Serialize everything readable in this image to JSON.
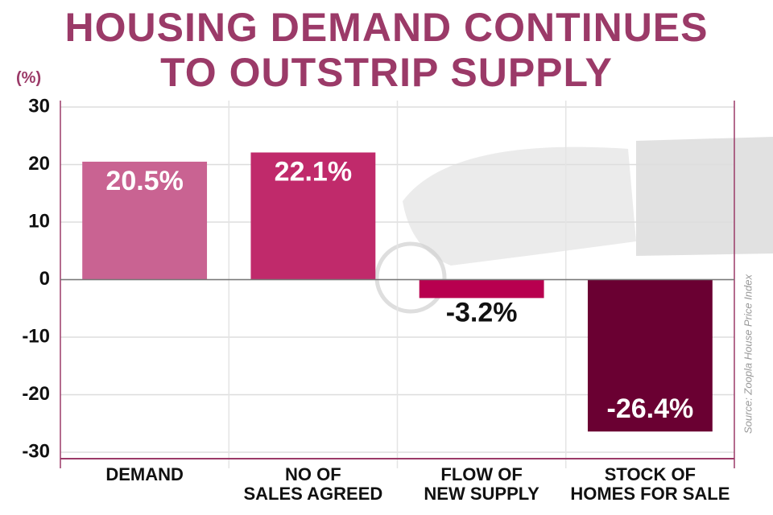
{
  "chart_data": {
    "type": "bar",
    "title": "HOUSING DEMAND CONTINUES\nTO OUTSTRIP SUPPLY",
    "y_axis_label": "(%)",
    "source": "Source: Zoopla House Price Index",
    "categories": [
      "DEMAND",
      "NO OF\nSALES AGREED",
      "FLOW OF\nNEW SUPPLY",
      "STOCK OF\nHOMES FOR SALE"
    ],
    "values": [
      20.5,
      22.1,
      -3.2,
      -26.4
    ],
    "value_labels": [
      "20.5%",
      "22.1%",
      "-3.2%",
      "-26.4%"
    ],
    "colors": [
      "#c96392",
      "#c02a6b",
      "#b8004f",
      "#6a0032"
    ],
    "ylim": [
      -30,
      30
    ],
    "yticks": [
      30,
      20,
      10,
      0,
      -10,
      -20,
      -30
    ],
    "grid": true
  }
}
